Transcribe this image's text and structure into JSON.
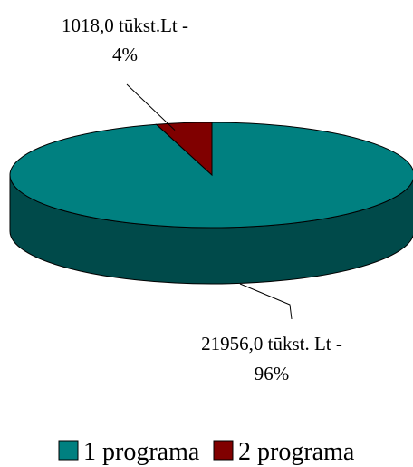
{
  "chart_data": {
    "type": "pie",
    "style": "3d",
    "slices": [
      {
        "name": "1 programa",
        "value": 21956.0,
        "percent": 96,
        "label_line1": "21956,0 tūkst. Lt -",
        "label_line2": "96%",
        "color": "#008080",
        "side_color": "#004A4A"
      },
      {
        "name": "2 programa",
        "value": 1018.0,
        "percent": 4,
        "label_line1": "1018,0 tūkst.Lt  -",
        "label_line2": "4%",
        "color": "#800000",
        "side_color": "#4A0000"
      }
    ],
    "legend": {
      "placement": "bottom",
      "entries": [
        "1 programa",
        "2 programa"
      ]
    }
  }
}
